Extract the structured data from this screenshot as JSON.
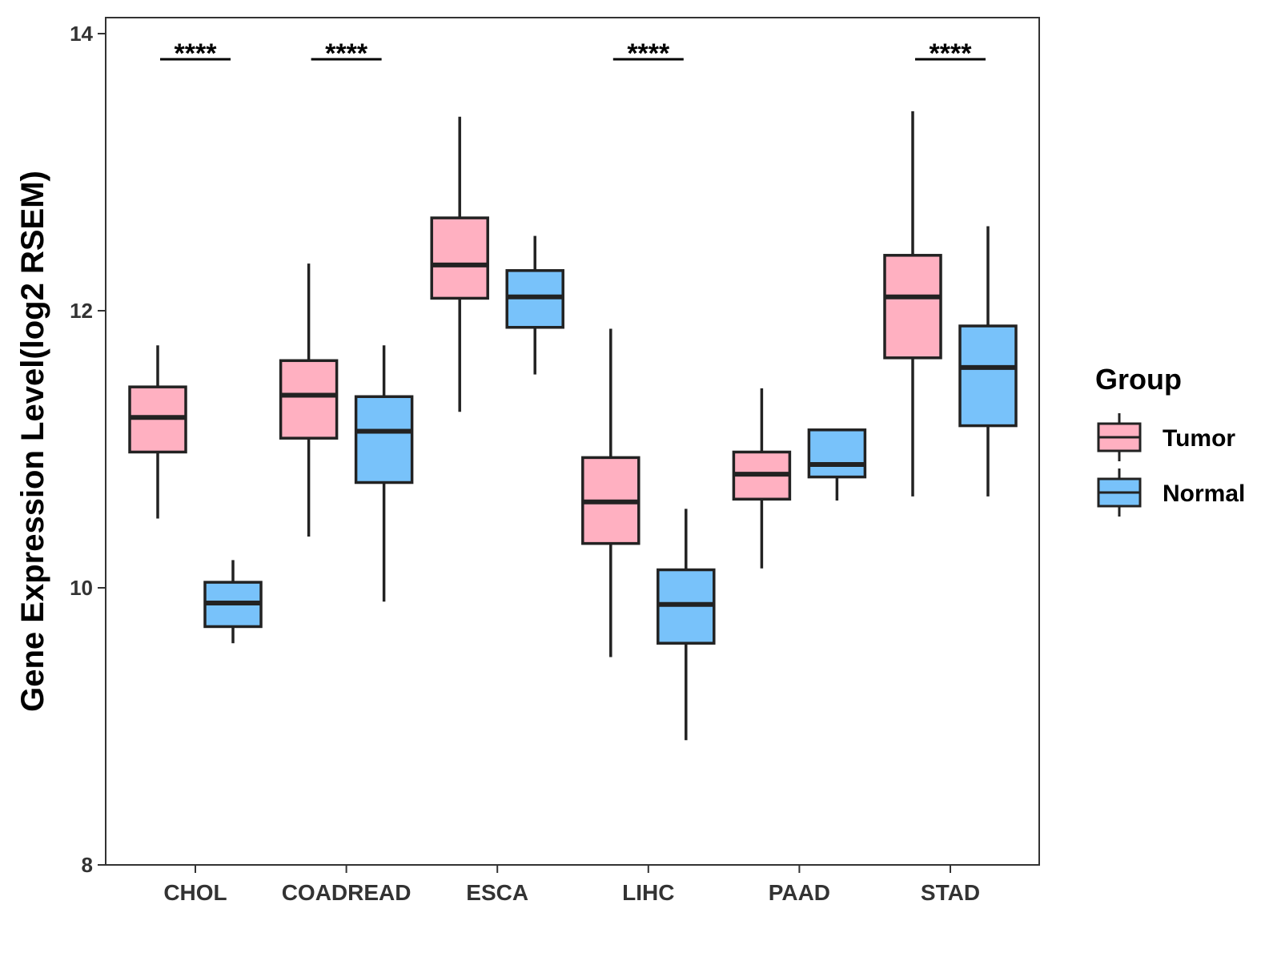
{
  "chart_data": {
    "type": "box",
    "title": "",
    "xlabel": "",
    "ylabel": "Gene Expression Level(log2 RSEM)",
    "ylim": [
      8,
      14
    ],
    "yticks": [
      8,
      10,
      12,
      14
    ],
    "grid": false,
    "legend": {
      "title": "Group",
      "position": "right",
      "entries": [
        {
          "name": "Tumor",
          "color": "#FFB0C1"
        },
        {
          "name": "Normal",
          "color": "#78C2FA"
        }
      ]
    },
    "categories": [
      "CHOL",
      "COADREAD",
      "ESCA",
      "LIHC",
      "PAAD",
      "STAD"
    ],
    "series": [
      {
        "name": "Tumor",
        "color": "#FFB0C1",
        "boxes": [
          {
            "min": 10.5,
            "q1": 10.98,
            "median": 11.23,
            "q3": 11.45,
            "max": 11.75
          },
          {
            "min": 10.37,
            "q1": 11.08,
            "median": 11.39,
            "q3": 11.64,
            "max": 12.34
          },
          {
            "min": 11.27,
            "q1": 12.09,
            "median": 12.33,
            "q3": 12.67,
            "max": 13.4
          },
          {
            "min": 9.5,
            "q1": 10.32,
            "median": 10.62,
            "q3": 10.94,
            "max": 11.87
          },
          {
            "min": 10.14,
            "q1": 10.64,
            "median": 10.82,
            "q3": 10.98,
            "max": 11.44
          },
          {
            "min": 10.66,
            "q1": 11.66,
            "median": 12.1,
            "q3": 12.4,
            "max": 13.44
          }
        ]
      },
      {
        "name": "Normal",
        "color": "#78C2FA",
        "boxes": [
          {
            "min": 9.6,
            "q1": 9.72,
            "median": 9.89,
            "q3": 10.04,
            "max": 10.2
          },
          {
            "min": 9.9,
            "q1": 10.76,
            "median": 11.13,
            "q3": 11.38,
            "max": 11.75
          },
          {
            "min": 11.54,
            "q1": 11.88,
            "median": 12.1,
            "q3": 12.29,
            "max": 12.54
          },
          {
            "min": 8.9,
            "q1": 9.6,
            "median": 9.88,
            "q3": 10.13,
            "max": 10.57
          },
          {
            "min": 10.63,
            "q1": 10.8,
            "median": 10.89,
            "q3": 11.14,
            "max": 11.14
          },
          {
            "min": 10.66,
            "q1": 11.17,
            "median": 11.59,
            "q3": 11.89,
            "max": 12.61
          }
        ]
      }
    ],
    "annotations": [
      {
        "category": "CHOL",
        "text": "****"
      },
      {
        "category": "COADREAD",
        "text": "****"
      },
      {
        "category": "LIHC",
        "text": "****"
      },
      {
        "category": "STAD",
        "text": "****"
      }
    ]
  }
}
